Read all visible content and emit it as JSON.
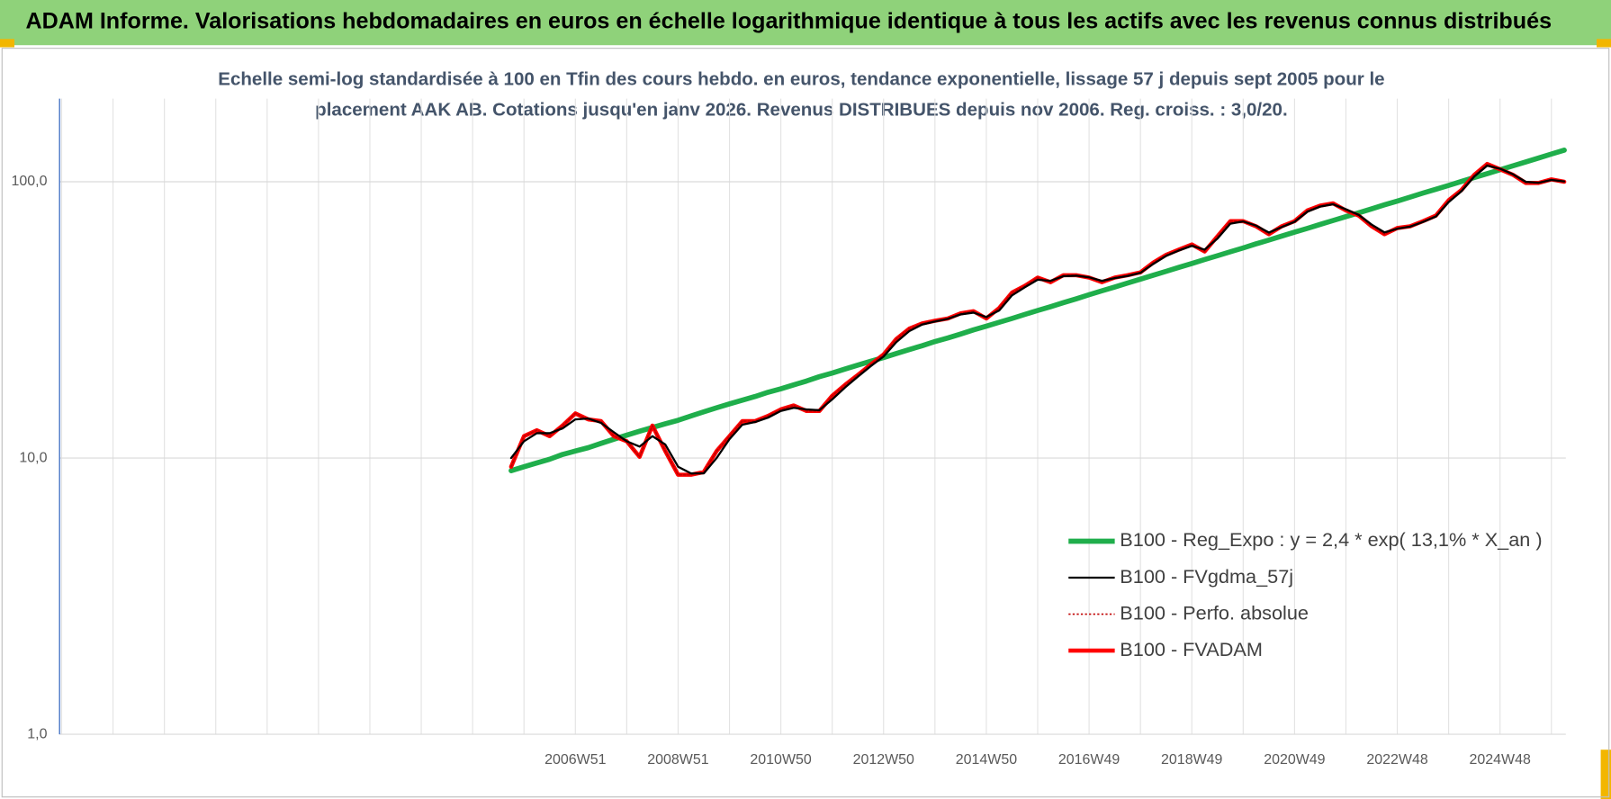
{
  "chart_data": {
    "type": "line",
    "title": "ADAM Informe. Valorisations hebdomadaires en euros en échelle logarithmique identique à tous les actifs avec les revenus connus distribués",
    "subtitle_lines": [
      "Echelle semi-log standardisée à 100 en Tfin des cours hebdo. en euros, tendance exponentielle, lissage 57 j depuis sept 2005 pour le",
      "placement AAK AB. Cotations jusqu'en janv 2026. Revenus DISTRIBUES depuis nov 2006. Reg. croiss. : 3,0/20."
    ],
    "log_scale": true,
    "grid": true,
    "legend": "lower right",
    "ylim": [
      1,
      200
    ],
    "yticks": [
      {
        "value": 1,
        "label": "1,0"
      },
      {
        "value": 10,
        "label": "10,0"
      },
      {
        "value": 100,
        "label": "100,0"
      }
    ],
    "categories": [
      null,
      null,
      null,
      null,
      null,
      null,
      null,
      null,
      null,
      null,
      null,
      null,
      null,
      null,
      null,
      null,
      null,
      null,
      null,
      null,
      null,
      null,
      null,
      null,
      null,
      null,
      null,
      null,
      null,
      null,
      null,
      null,
      null,
      null,
      null,
      null,
      null,
      null,
      null,
      null,
      "2006W51",
      null,
      null,
      null,
      null,
      null,
      null,
      null,
      "2008W51",
      null,
      null,
      null,
      null,
      null,
      null,
      null,
      "2010W50",
      null,
      null,
      null,
      null,
      null,
      null,
      null,
      "2012W50",
      null,
      null,
      null,
      null,
      null,
      null,
      null,
      "2014W50",
      null,
      null,
      null,
      null,
      null,
      null,
      null,
      "2016W49",
      null,
      null,
      null,
      null,
      null,
      null,
      null,
      "2018W49",
      null,
      null,
      null,
      null,
      null,
      null,
      null,
      "2020W49",
      null,
      null,
      null,
      null,
      null,
      null,
      null,
      "2022W48",
      null,
      null,
      null,
      null,
      null,
      null,
      null,
      "2024W48",
      null,
      null,
      null,
      null,
      null
    ],
    "series": [
      {
        "name": "B100 - Reg_Expo : y = 2,4 * exp( 13,1% *  X_an )",
        "color": "#1fae4b",
        "line_width": 5,
        "style": "solid",
        "values": [
          null,
          null,
          null,
          null,
          null,
          null,
          null,
          null,
          null,
          null,
          null,
          null,
          null,
          null,
          null,
          null,
          null,
          null,
          null,
          null,
          null,
          null,
          null,
          null,
          null,
          null,
          null,
          null,
          null,
          null,
          null,
          null,
          null,
          null,
          null,
          9.0,
          9.3,
          9.6,
          9.9,
          10.3,
          10.6,
          10.9,
          11.3,
          11.7,
          12.1,
          12.5,
          12.9,
          13.3,
          13.7,
          14.2,
          14.7,
          15.2,
          15.7,
          16.2,
          16.7,
          17.3,
          17.8,
          18.4,
          19.0,
          19.7,
          20.3,
          21.0,
          21.7,
          22.4,
          23.1,
          23.9,
          24.7,
          25.5,
          26.4,
          27.2,
          28.1,
          29.1,
          30.0,
          31.0,
          32.0,
          33.1,
          34.2,
          35.3,
          36.5,
          37.7,
          39.0,
          40.3,
          41.6,
          43.0,
          44.4,
          45.9,
          47.4,
          49.0,
          50.6,
          52.3,
          54.0,
          55.8,
          57.6,
          59.6,
          61.5,
          63.6,
          65.7,
          67.8,
          70.1,
          72.4,
          74.8,
          77.2,
          79.8,
          82.5,
          85.1,
          88.0,
          91.0,
          93.9,
          97.0,
          100.3,
          103.6,
          107.0,
          110.5,
          114.2,
          117.9,
          121.9,
          126.0,
          130.1
        ]
      },
      {
        "name": "B100 - FVgdma_57j",
        "color": "#000000",
        "line_width": 2,
        "style": "solid",
        "values": [
          null,
          null,
          null,
          null,
          null,
          null,
          null,
          null,
          null,
          null,
          null,
          null,
          null,
          null,
          null,
          null,
          null,
          null,
          null,
          null,
          null,
          null,
          null,
          null,
          null,
          null,
          null,
          null,
          null,
          null,
          null,
          null,
          null,
          null,
          null,
          10.0,
          11.5,
          12.3,
          12.3,
          12.8,
          13.8,
          13.9,
          13.4,
          12.4,
          11.5,
          11.0,
          12.0,
          11.2,
          9.3,
          8.8,
          8.8,
          10.0,
          11.7,
          13.2,
          13.5,
          14.0,
          14.8,
          15.2,
          15.0,
          14.9,
          16.3,
          18.0,
          19.7,
          21.5,
          23.3,
          26.3,
          28.8,
          30.4,
          31.2,
          31.9,
          33.1,
          33.6,
          32.4,
          34.2,
          38.8,
          41.5,
          44.2,
          43.8,
          45.5,
          45.7,
          45.1,
          43.8,
          44.8,
          45.6,
          46.8,
          50.4,
          53.9,
          56.4,
          58.6,
          56.8,
          62.3,
          70.5,
          71.8,
          69.4,
          65.5,
          68.5,
          71.6,
          77.9,
          81.3,
          82.9,
          79.5,
          75.9,
          70.0,
          65.6,
          67.6,
          68.8,
          71.5,
          74.8,
          84.4,
          92.4,
          104.5,
          114.3,
          111.5,
          106.5,
          100.0,
          99.2,
          101.5,
          100.3
        ]
      },
      {
        "name": "B100 - Perfo. absolue",
        "color": "#c00000",
        "line_width": 1.5,
        "style": "dotted",
        "values": [
          null,
          null,
          null,
          null,
          null,
          null,
          null,
          null,
          null,
          null,
          null,
          null,
          null,
          null,
          null,
          null,
          null,
          null,
          null,
          null,
          null,
          null,
          null,
          null,
          null,
          null,
          null,
          null,
          null,
          null,
          null,
          null,
          null,
          null,
          null,
          9.3,
          12.0,
          12.6,
          12.0,
          13.1,
          14.5,
          13.8,
          13.6,
          12.0,
          11.5,
          10.1,
          13.1,
          10.6,
          8.7,
          8.7,
          8.9,
          10.6,
          12.0,
          13.6,
          13.6,
          14.2,
          15.0,
          15.5,
          14.8,
          14.8,
          16.8,
          18.4,
          20,
          21.8,
          23.7,
          27,
          29.4,
          30.7,
          31.4,
          32,
          33.4,
          34,
          32,
          34.9,
          39.7,
          42,
          45,
          43.3,
          45.9,
          45.9,
          45,
          43.3,
          45,
          45.9,
          47,
          51,
          54.4,
          56.8,
          59.3,
          55.9,
          63.5,
          72,
          72,
          69,
          64.6,
          69,
          72,
          78.7,
          82,
          83.5,
          78.7,
          75.4,
          69,
          64.6,
          68,
          69,
          72,
          75.4,
          85.7,
          93.4,
          106,
          116,
          111,
          106,
          99,
          99,
          102,
          100
        ]
      },
      {
        "name": "B100 - FVADAM",
        "color": "#ff0000",
        "line_width": 4,
        "style": "solid",
        "values": [
          null,
          null,
          null,
          null,
          null,
          null,
          null,
          null,
          null,
          null,
          null,
          null,
          null,
          null,
          null,
          null,
          null,
          null,
          null,
          null,
          null,
          null,
          null,
          null,
          null,
          null,
          null,
          null,
          null,
          null,
          null,
          null,
          null,
          null,
          null,
          9.3,
          12.0,
          12.6,
          12.0,
          13.1,
          14.5,
          13.8,
          13.6,
          12.0,
          11.5,
          10.1,
          13.1,
          10.6,
          8.7,
          8.7,
          8.9,
          10.6,
          12.0,
          13.6,
          13.6,
          14.2,
          15.0,
          15.5,
          14.8,
          14.8,
          16.8,
          18.4,
          20,
          21.8,
          23.7,
          27,
          29.4,
          30.7,
          31.4,
          32,
          33.4,
          34,
          32,
          34.9,
          39.7,
          42,
          45,
          43.3,
          45.9,
          45.9,
          45,
          43.3,
          45,
          45.9,
          47,
          51,
          54.4,
          56.8,
          59.3,
          55.9,
          63.5,
          72,
          72,
          69,
          64.6,
          69,
          72,
          78.7,
          82,
          83.5,
          78.7,
          75.4,
          69,
          64.6,
          68,
          69,
          72,
          75.4,
          85.7,
          93.4,
          106,
          116,
          111,
          106,
          99,
          99,
          102,
          100
        ]
      }
    ]
  }
}
